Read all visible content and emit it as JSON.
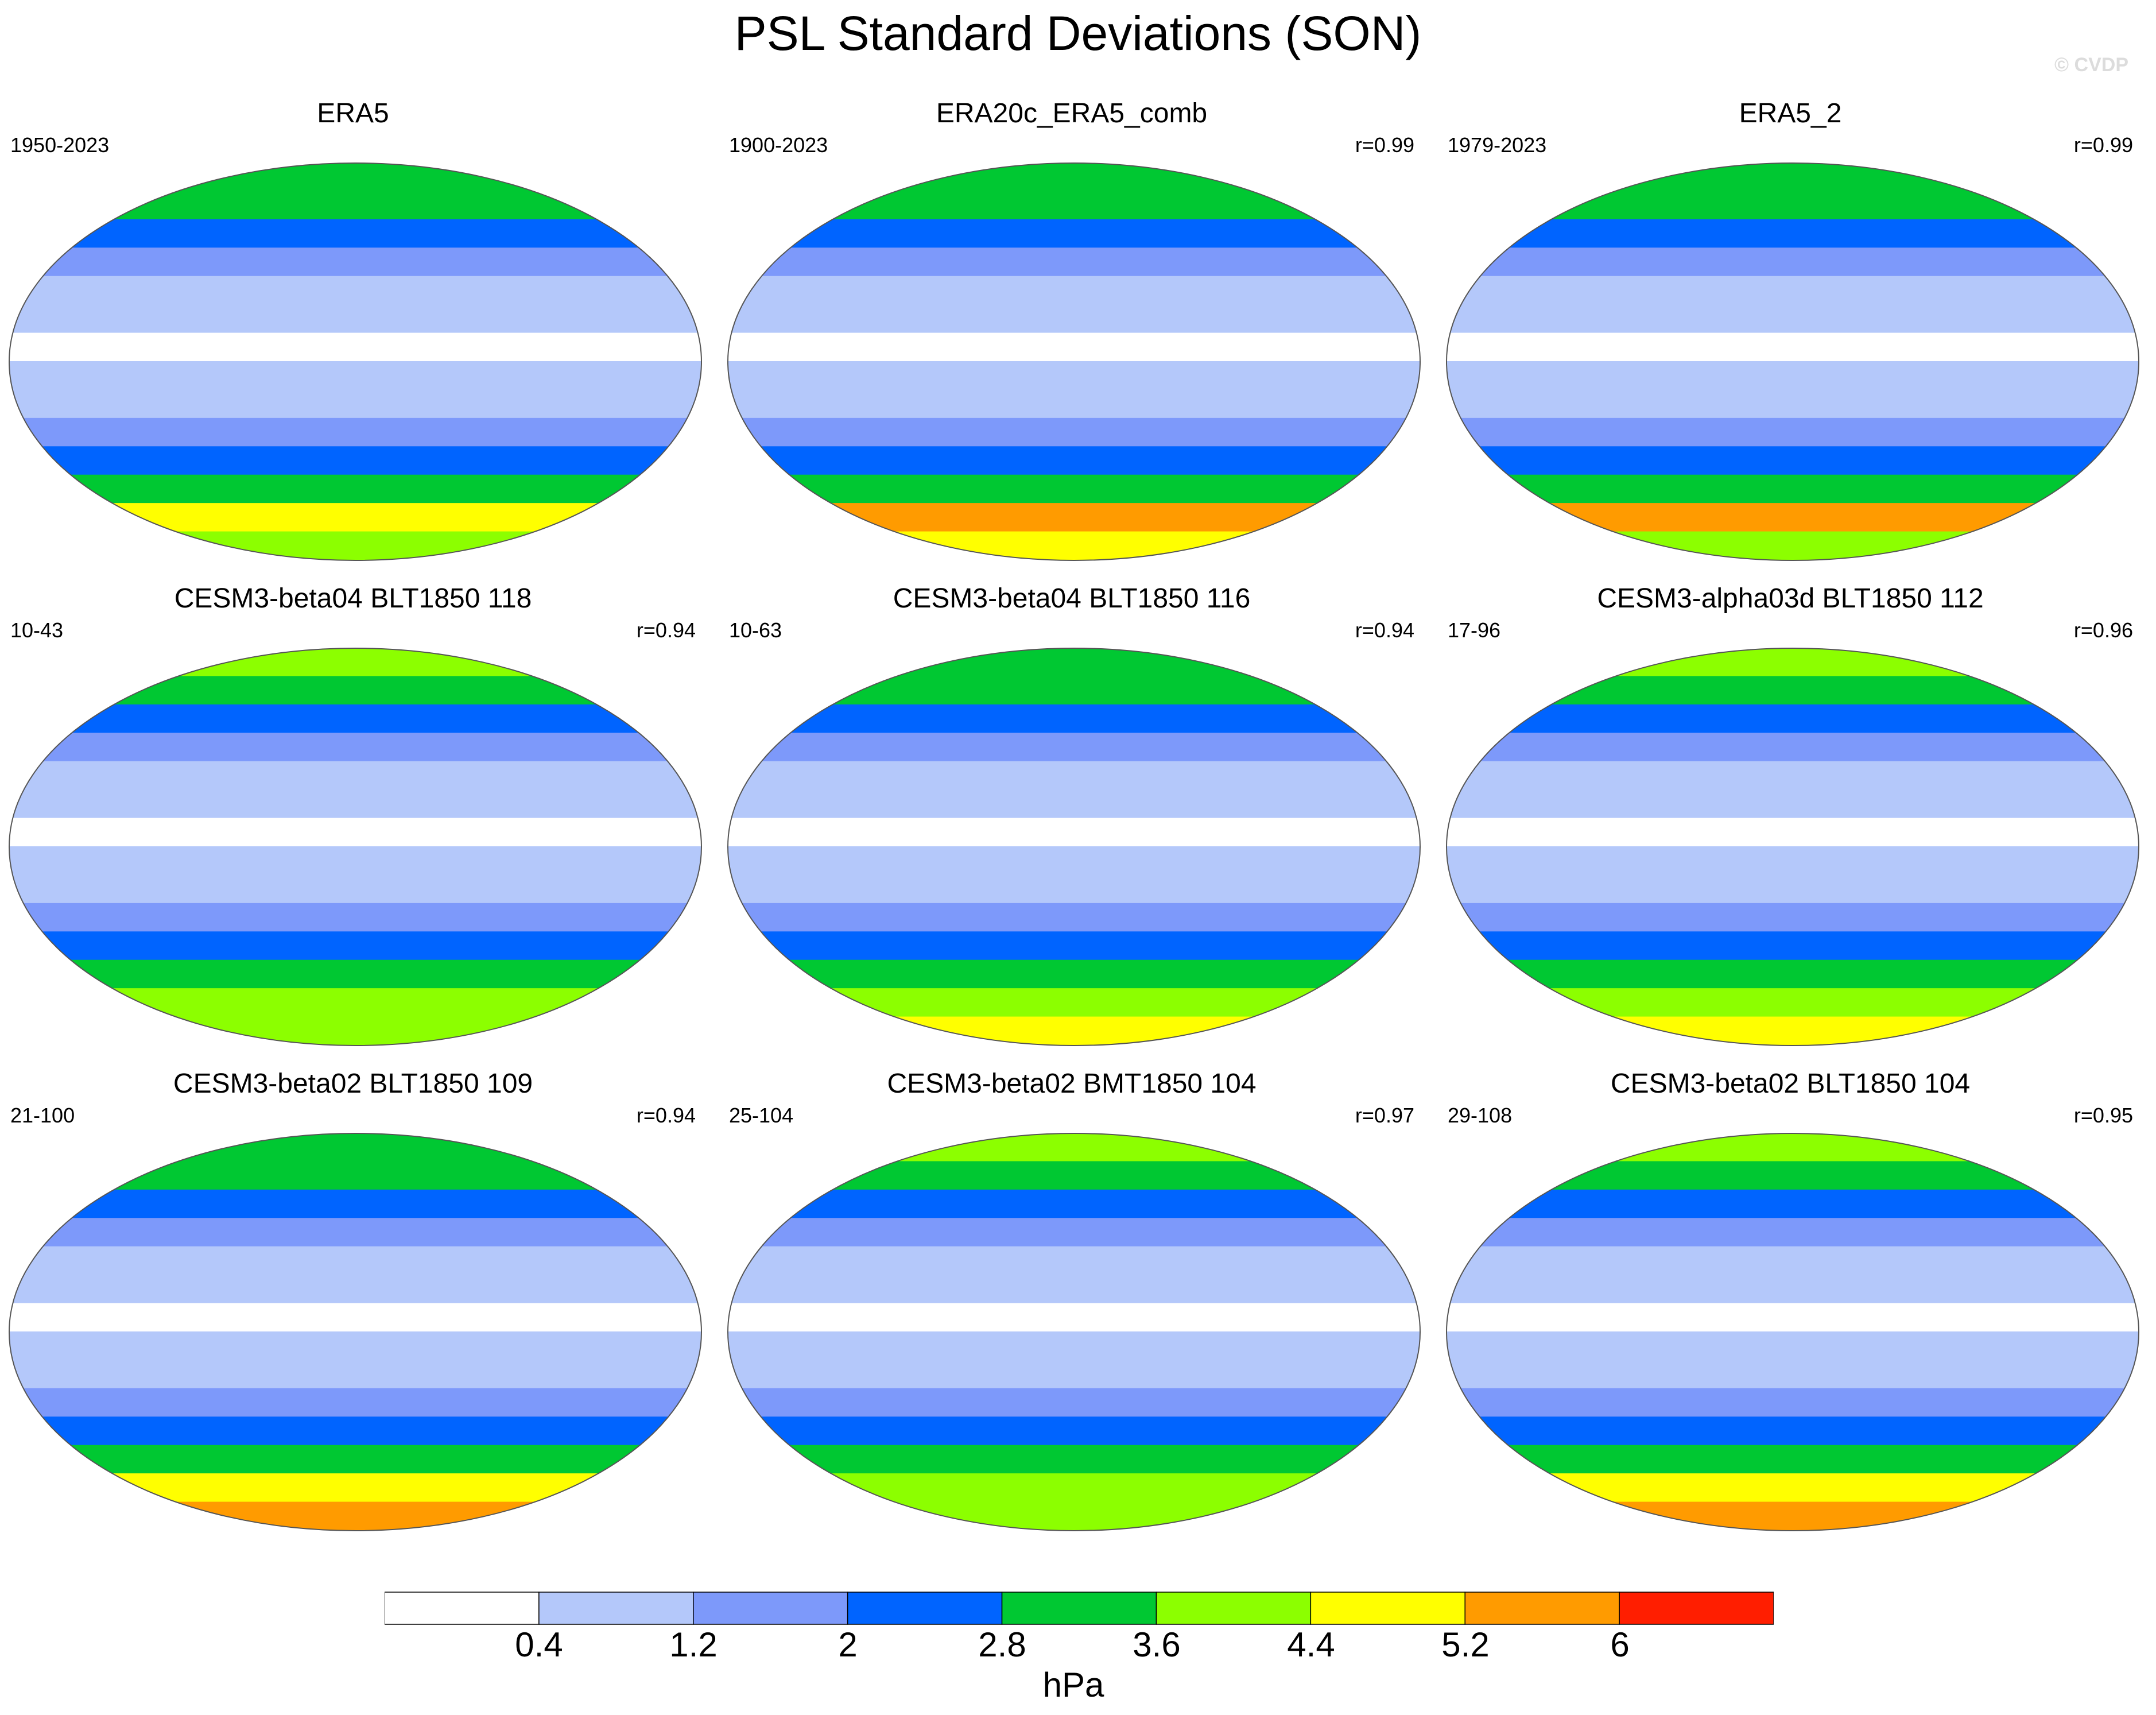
{
  "chart_data": {
    "type": "heatmap",
    "title": "PSL Standard Deviations (SON)",
    "watermark": "© CVDP",
    "colorbar": {
      "levels": [
        "0.4",
        "1.2",
        "2",
        "2.8",
        "3.6",
        "4.4",
        "5.2",
        "6"
      ],
      "colors": [
        "#ffffff",
        "#b4c8fa",
        "#7d99fa",
        "#0064ff",
        "#00c832",
        "#8cff00",
        "#ffff00",
        "#ff9b00",
        "#ff1e00"
      ],
      "units": "hPa"
    },
    "panels": [
      {
        "title": "ERA5",
        "years": "1950-2023",
        "r": "",
        "profile": [
          4,
          4,
          3,
          2,
          1,
          1,
          0,
          1,
          1,
          2,
          3,
          4,
          6,
          5
        ]
      },
      {
        "title": "ERA20c_ERA5_comb",
        "years": "1900-2023",
        "r": "r=0.99",
        "profile": [
          4,
          4,
          3,
          2,
          1,
          1,
          0,
          1,
          1,
          2,
          3,
          4,
          7,
          6
        ]
      },
      {
        "title": "ERA5_2",
        "years": "1979-2023",
        "r": "r=0.99",
        "profile": [
          4,
          4,
          3,
          2,
          1,
          1,
          0,
          1,
          1,
          2,
          3,
          4,
          7,
          5
        ]
      },
      {
        "title": "CESM3-beta04 BLT1850 118",
        "years": "10-43",
        "r": "r=0.94",
        "profile": [
          5,
          4,
          3,
          2,
          1,
          1,
          0,
          1,
          1,
          2,
          3,
          4,
          5,
          5
        ]
      },
      {
        "title": "CESM3-beta04 BLT1850 116",
        "years": "10-63",
        "r": "r=0.94",
        "profile": [
          4,
          4,
          3,
          2,
          1,
          1,
          0,
          1,
          1,
          2,
          3,
          4,
          5,
          6
        ]
      },
      {
        "title": "CESM3-alpha03d BLT1850 112",
        "years": "17-96",
        "r": "r=0.96",
        "profile": [
          5,
          4,
          3,
          2,
          1,
          1,
          0,
          1,
          1,
          2,
          3,
          4,
          5,
          6
        ]
      },
      {
        "title": "CESM3-beta02 BLT1850 109",
        "years": "21-100",
        "r": "r=0.94",
        "profile": [
          4,
          4,
          3,
          2,
          1,
          1,
          0,
          1,
          1,
          2,
          3,
          4,
          6,
          7
        ]
      },
      {
        "title": "CESM3-beta02 BMT1850 104",
        "years": "25-104",
        "r": "r=0.97",
        "profile": [
          5,
          4,
          3,
          2,
          1,
          1,
          0,
          1,
          1,
          2,
          3,
          4,
          5,
          5
        ]
      },
      {
        "title": "CESM3-beta02 BLT1850 104",
        "years": "29-108",
        "r": "r=0.95",
        "profile": [
          5,
          4,
          3,
          2,
          1,
          1,
          0,
          1,
          1,
          2,
          3,
          4,
          6,
          7
        ]
      }
    ]
  }
}
